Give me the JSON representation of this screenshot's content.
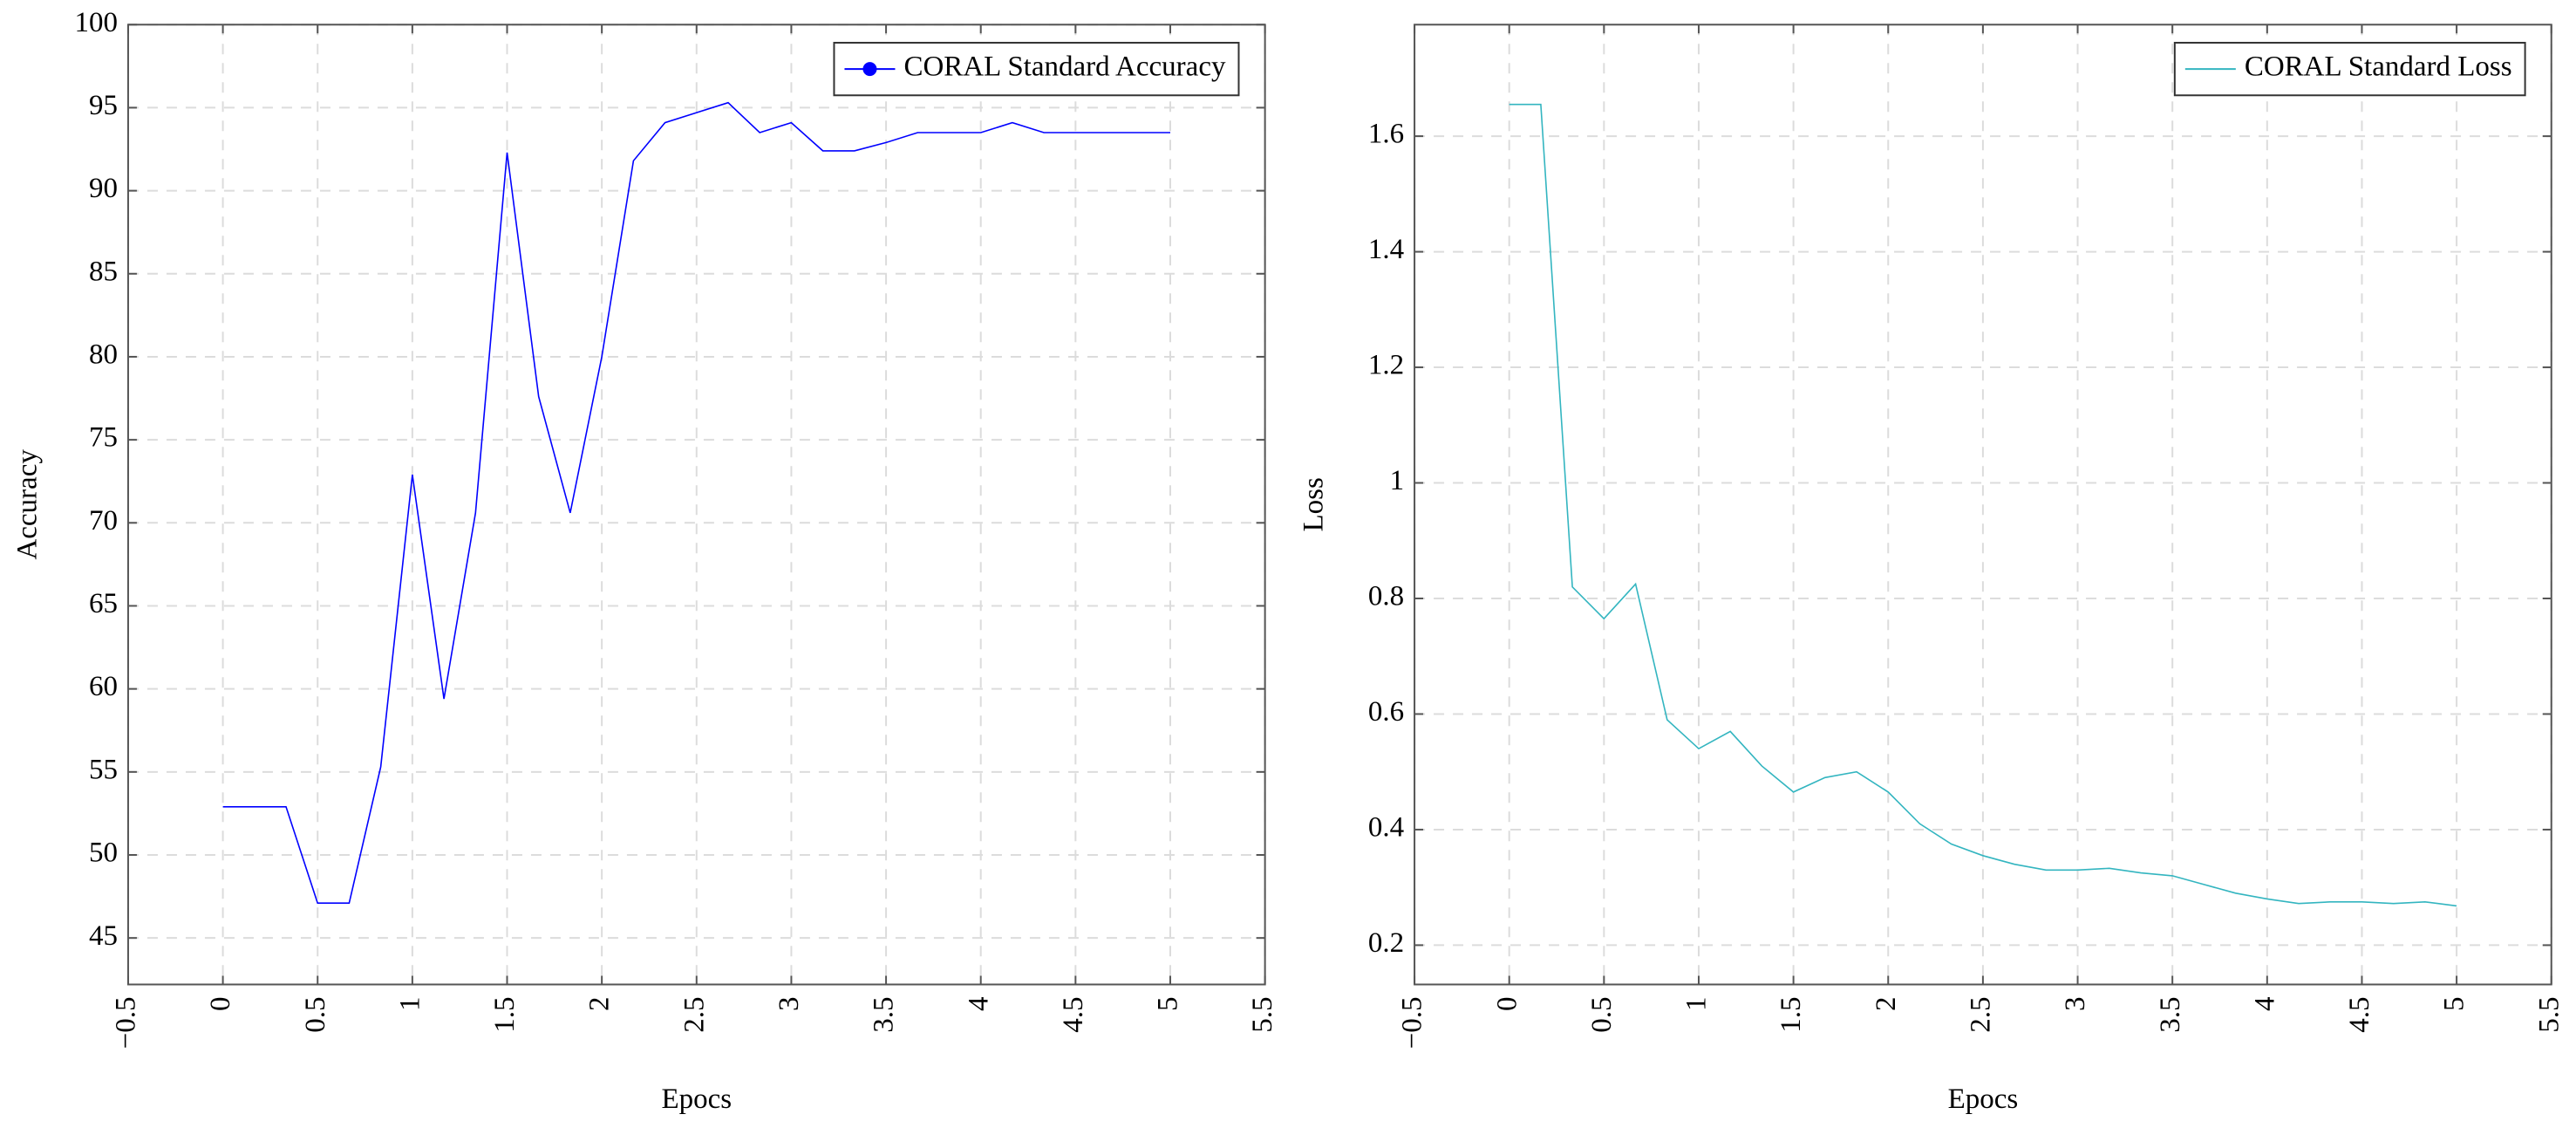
{
  "chart_data": [
    {
      "type": "line",
      "xlabel": "Epocs",
      "ylabel": "Accuracy",
      "x": [
        0,
        0.1667,
        0.3333,
        0.5,
        0.6667,
        0.8333,
        1,
        1.1667,
        1.3333,
        1.5,
        1.6667,
        1.8333,
        2,
        2.1667,
        2.3333,
        2.5,
        2.6667,
        2.8333,
        3,
        3.1667,
        3.3333,
        3.5,
        3.6667,
        3.8333,
        4,
        4.1667,
        4.3333,
        4.5,
        4.6667,
        4.8333,
        5
      ],
      "series": [
        {
          "name": "CORAL Standard Accuracy",
          "color": "#0000ff",
          "legend_marker": "circle",
          "values": [
            52.9,
            52.9,
            52.9,
            47.1,
            47.1,
            55.3,
            72.9,
            59.4,
            70.6,
            92.3,
            77.6,
            70.6,
            80,
            91.8,
            94.1,
            94.7,
            95.3,
            93.5,
            94.1,
            92.4,
            92.4,
            92.9,
            93.5,
            93.5,
            93.5,
            94.1,
            93.5,
            93.5,
            93.5,
            93.5,
            93.5
          ]
        }
      ],
      "xlim": [
        -0.5,
        5.5
      ],
      "xticks": [
        {
          "value": -0.5,
          "label": "−0.5"
        },
        0,
        0.5,
        1,
        1.5,
        2,
        2.5,
        3,
        3.5,
        4,
        4.5,
        5,
        5.5
      ],
      "ylim": [
        42.2,
        100
      ],
      "yticks": [
        45,
        50,
        55,
        60,
        65,
        70,
        75,
        80,
        85,
        90,
        95,
        100
      ],
      "grid": true,
      "legend": "top right"
    },
    {
      "type": "line",
      "xlabel": "Epocs",
      "ylabel": "Loss",
      "x": [
        0,
        0.1667,
        0.3333,
        0.5,
        0.6667,
        0.8333,
        1,
        1.1667,
        1.3333,
        1.5,
        1.6667,
        1.8333,
        2,
        2.1667,
        2.3333,
        2.5,
        2.6667,
        2.8333,
        3,
        3.1667,
        3.3333,
        3.5,
        3.6667,
        3.8333,
        4,
        4.1667,
        4.3333,
        4.5,
        4.6667,
        4.8333,
        5
      ],
      "series": [
        {
          "name": "CORAL Standard Loss",
          "color": "#33b5c0",
          "legend_marker": "none",
          "values": [
            1.655,
            1.655,
            0.82,
            0.765,
            0.825,
            0.59,
            0.54,
            0.57,
            0.51,
            0.465,
            0.49,
            0.5,
            0.465,
            0.41,
            0.375,
            0.355,
            0.34,
            0.33,
            0.33,
            0.333,
            0.325,
            0.32,
            0.305,
            0.29,
            0.28,
            0.272,
            0.275,
            0.275,
            0.272,
            0.275,
            0.268
          ]
        }
      ],
      "xlim": [
        -0.5,
        5.5
      ],
      "xticks": [
        {
          "value": -0.5,
          "label": "−0.5"
        },
        0,
        0.5,
        1,
        1.5,
        2,
        2.5,
        3,
        3.5,
        4,
        4.5,
        5,
        5.5
      ],
      "ylim": [
        0.132,
        1.793
      ],
      "yticks": [
        0.2,
        0.4,
        0.6,
        0.8,
        1,
        1.2,
        1.4,
        1.6
      ],
      "grid": true,
      "legend": "top right"
    }
  ]
}
